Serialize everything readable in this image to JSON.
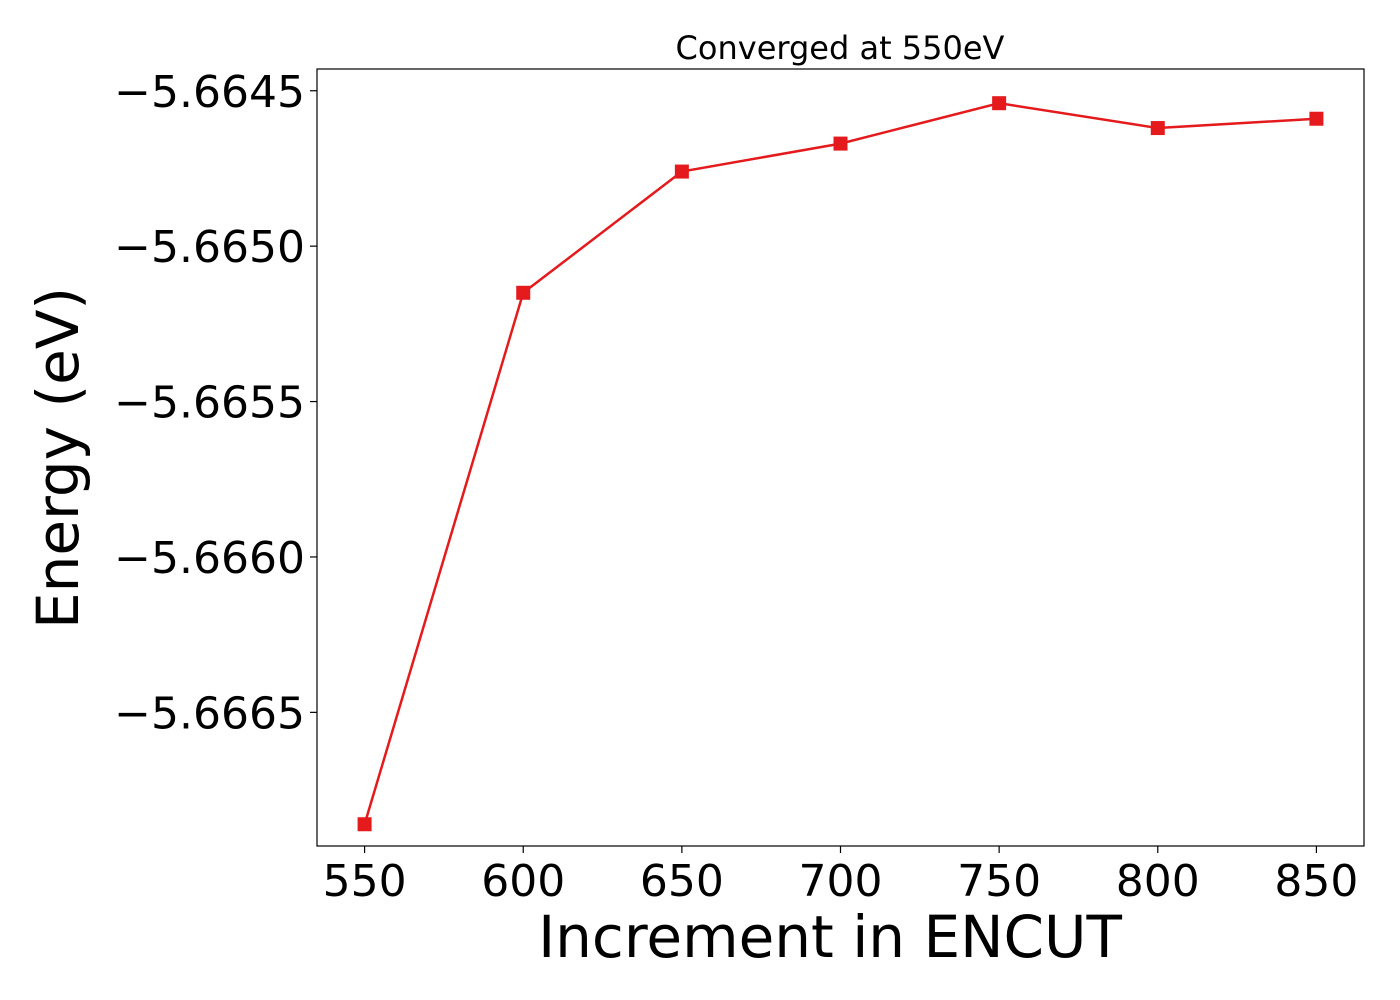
{
  "chart_data": {
    "type": "line",
    "title": "Converged at 550eV",
    "xlabel": "Increment in ENCUT",
    "ylabel": "Energy (eV)",
    "x": [
      550,
      600,
      650,
      700,
      750,
      800,
      850
    ],
    "series": [
      {
        "values": [
          -5.66686,
          -5.66515,
          -5.66476,
          -5.66467,
          -5.66454,
          -5.66462,
          -5.66459
        ],
        "color": "#e41a1c",
        "marker": "square"
      }
    ],
    "xticks": [
      550,
      600,
      650,
      700,
      750,
      800,
      850
    ],
    "xtick_labels": [
      "550",
      "600",
      "650",
      "700",
      "750",
      "800",
      "850"
    ],
    "yticks": [
      -5.6645,
      -5.665,
      -5.6655,
      -5.666,
      -5.6665
    ],
    "ytick_labels": [
      "−5.6645",
      "−5.6650",
      "−5.6655",
      "−5.6660",
      "−5.6665"
    ],
    "xlim": [
      535,
      865
    ],
    "ylim": [
      -5.66693,
      -5.66443
    ],
    "grid": false,
    "legend": "none"
  }
}
